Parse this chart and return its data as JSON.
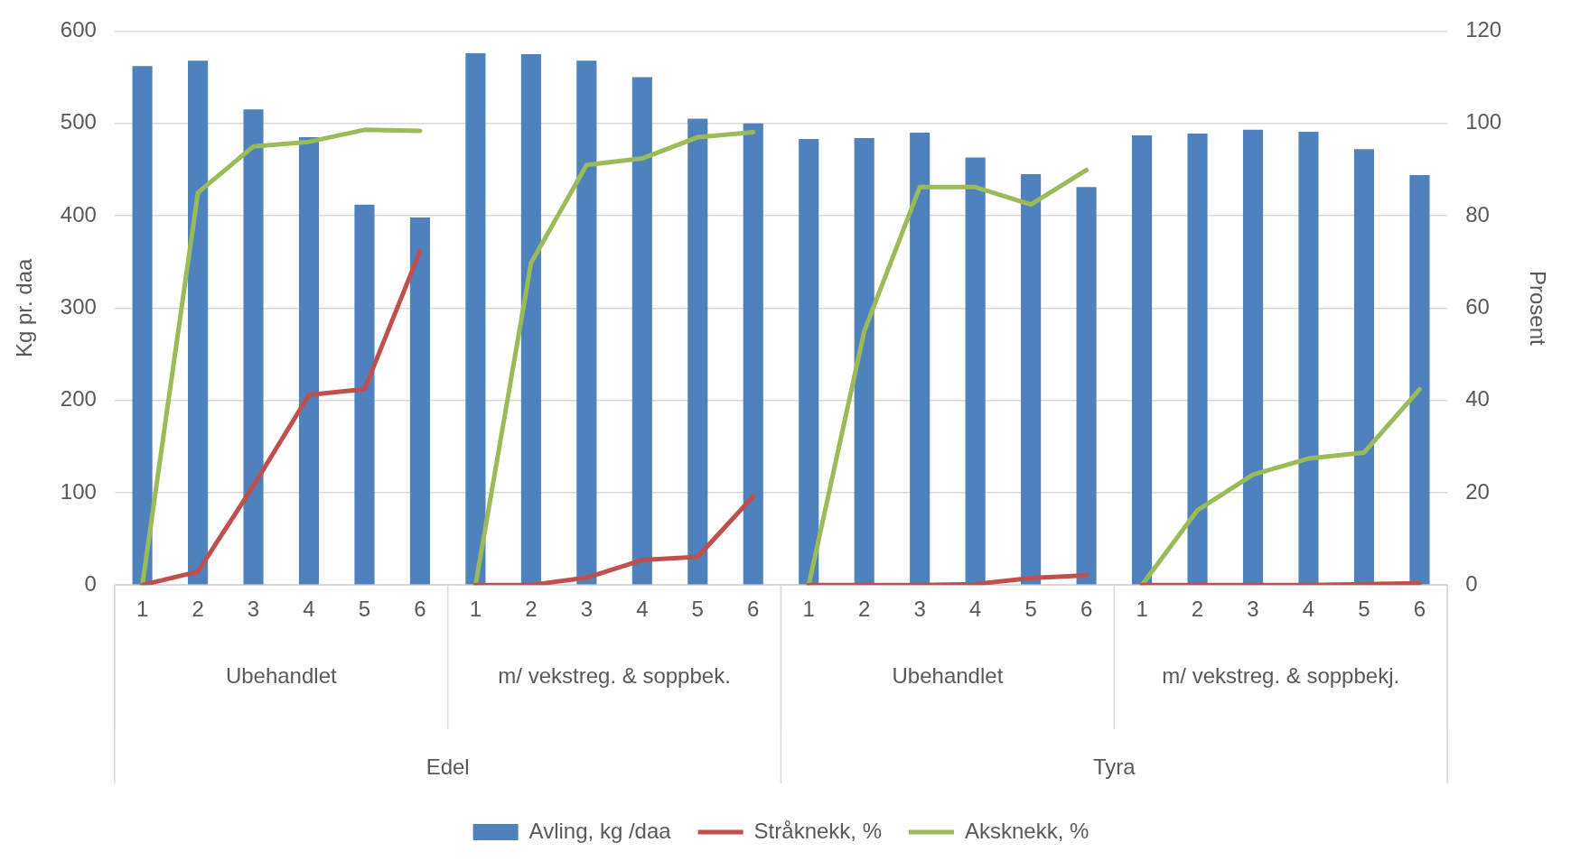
{
  "chart_data": {
    "type": "bar",
    "categories": [
      "1",
      "2",
      "3",
      "4",
      "5",
      "6",
      "1",
      "2",
      "3",
      "4",
      "5",
      "6",
      "1",
      "2",
      "3",
      "4",
      "5",
      "6",
      "1",
      "2",
      "3",
      "4",
      "5",
      "6"
    ],
    "series": [
      {
        "name": "Avling, kg /daa",
        "color": "#4f81bd",
        "values": [
          562,
          568,
          515,
          485,
          412,
          398,
          576,
          575,
          568,
          550,
          505,
          500,
          483,
          484,
          490,
          463,
          445,
          431,
          487,
          489,
          493,
          491,
          472,
          444
        ]
      },
      {
        "name": "Stråknekk, %",
        "type": "line",
        "axis": "y2",
        "color": "#c0504d",
        "values": [
          0,
          2.9,
          21.5,
          41.2,
          42.4,
          72.3,
          0,
          0,
          1.6,
          5.4,
          6.1,
          19.2,
          0,
          0,
          0,
          0.2,
          1.5,
          2.1,
          0,
          0,
          0,
          0,
          0.2,
          0.4
        ]
      },
      {
        "name": "Aksknekk, %",
        "type": "line",
        "axis": "y2",
        "color": "#9bbb59",
        "values": [
          0,
          85,
          95,
          96,
          98.6,
          98.4,
          0,
          69.8,
          91,
          92.4,
          97,
          98.1,
          0,
          55,
          86.2,
          86.2,
          82.4,
          89.9,
          0,
          16.2,
          23.9,
          27.4,
          28.7,
          42.4
        ]
      }
    ],
    "ylabel": "Kg pr. daa",
    "y2label": "Prosent",
    "ylim": [
      0,
      600
    ],
    "yticks": [
      0,
      100,
      200,
      300,
      400,
      500,
      600
    ],
    "y2lim": [
      0,
      120
    ],
    "y2ticks": [
      0,
      20,
      40,
      60,
      80,
      100,
      120
    ],
    "grid": "y",
    "legend": "bottom",
    "marker": "none",
    "annotations": [
      "Ubehandlet",
      "m/ vekstreg. & soppbek.",
      "Ubehandlet",
      "m/ vekstreg. & soppbekj.",
      "Edel",
      "Tyra"
    ]
  }
}
